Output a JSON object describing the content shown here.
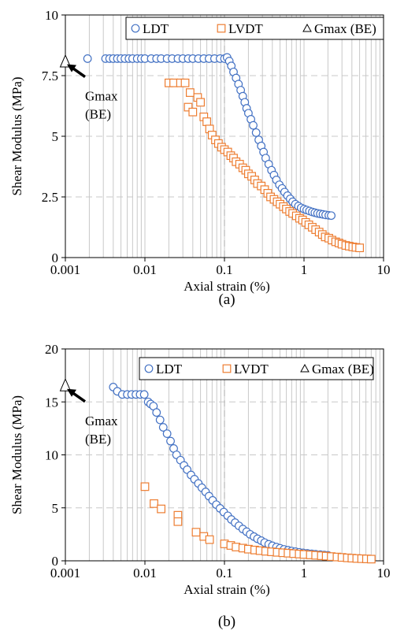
{
  "chart_data": [
    {
      "type": "scatter",
      "panel_label": "(a)",
      "xlabel": "Axial strain (%)",
      "ylabel": "Shear Modulus (MPa)",
      "x_scale": "log",
      "xlim": [
        0.001,
        10
      ],
      "ylim": [
        0,
        10
      ],
      "x_ticks": [
        0.001,
        0.01,
        0.1,
        1,
        10
      ],
      "x_tick_labels": [
        "0.001",
        "0.01",
        "0.1",
        "1",
        "10"
      ],
      "y_ticks": [
        0,
        2.5,
        5,
        7.5,
        10
      ],
      "y_tick_labels": [
        "0",
        "2.5",
        "5",
        "7.5",
        "10"
      ],
      "grid": "vertical minor log grid, dashed horizontal lines",
      "legend_placement": "top-right",
      "legend": [
        "LDT",
        "LVDT",
        "Gmax (BE)"
      ],
      "annotation": {
        "text_line1": "Gmax",
        "text_line2": "(BE)",
        "arrow_to": {
          "x": 0.001,
          "y": 8.0
        }
      },
      "dashed_reference_x": 0.1,
      "series": [
        {
          "name": "LDT",
          "marker": "circle",
          "color": "#4472C4",
          "x": [
            0.0019,
            0.0032,
            0.0036,
            0.004,
            0.0045,
            0.005,
            0.0056,
            0.0063,
            0.007,
            0.008,
            0.009,
            0.01,
            0.012,
            0.014,
            0.016,
            0.019,
            0.022,
            0.026,
            0.03,
            0.035,
            0.04,
            0.047,
            0.055,
            0.064,
            0.075,
            0.088,
            0.1,
            0.108,
            0.115,
            0.122,
            0.13,
            0.14,
            0.15,
            0.16,
            0.17,
            0.18,
            0.19,
            0.2,
            0.215,
            0.23,
            0.25,
            0.27,
            0.29,
            0.31,
            0.33,
            0.36,
            0.39,
            0.42,
            0.45,
            0.49,
            0.53,
            0.57,
            0.62,
            0.67,
            0.72,
            0.78,
            0.85,
            0.92,
            1.0,
            1.08,
            1.17,
            1.27,
            1.37,
            1.48,
            1.6,
            1.73,
            1.87,
            2.05,
            2.2
          ],
          "y": [
            8.2,
            8.2,
            8.2,
            8.2,
            8.2,
            8.2,
            8.2,
            8.2,
            8.2,
            8.2,
            8.2,
            8.2,
            8.2,
            8.2,
            8.2,
            8.2,
            8.2,
            8.2,
            8.2,
            8.2,
            8.2,
            8.2,
            8.2,
            8.2,
            8.2,
            8.2,
            8.2,
            8.25,
            8.1,
            7.9,
            7.65,
            7.4,
            7.15,
            6.9,
            6.65,
            6.4,
            6.15,
            5.95,
            5.7,
            5.45,
            5.15,
            4.85,
            4.6,
            4.35,
            4.1,
            3.85,
            3.6,
            3.4,
            3.2,
            3.0,
            2.85,
            2.7,
            2.55,
            2.42,
            2.3,
            2.2,
            2.12,
            2.05,
            2.0,
            1.96,
            1.92,
            1.88,
            1.85,
            1.82,
            1.8,
            1.78,
            1.76,
            1.74,
            1.73
          ]
        },
        {
          "name": "LVDT",
          "marker": "square",
          "color": "#ED7D31",
          "x": [
            0.02,
            0.023,
            0.028,
            0.032,
            0.035,
            0.037,
            0.04,
            0.046,
            0.05,
            0.055,
            0.06,
            0.065,
            0.07,
            0.077,
            0.084,
            0.092,
            0.1,
            0.11,
            0.12,
            0.13,
            0.14,
            0.155,
            0.17,
            0.185,
            0.2,
            0.22,
            0.24,
            0.26,
            0.29,
            0.32,
            0.35,
            0.38,
            0.42,
            0.46,
            0.5,
            0.55,
            0.6,
            0.66,
            0.72,
            0.8,
            0.88,
            0.96,
            1.05,
            1.15,
            1.27,
            1.4,
            1.55,
            1.7,
            1.85,
            2.05,
            2.25,
            2.5,
            2.75,
            3.0,
            3.35,
            3.7,
            4.1,
            4.5,
            5.0
          ],
          "y": [
            7.2,
            7.2,
            7.2,
            7.2,
            6.2,
            6.8,
            6.0,
            6.6,
            6.4,
            5.8,
            5.6,
            5.3,
            5.05,
            4.85,
            4.7,
            4.55,
            4.45,
            4.35,
            4.2,
            4.1,
            3.95,
            3.85,
            3.7,
            3.6,
            3.45,
            3.35,
            3.2,
            3.05,
            2.95,
            2.8,
            2.65,
            2.5,
            2.4,
            2.3,
            2.2,
            2.1,
            2.0,
            1.9,
            1.82,
            1.72,
            1.62,
            1.55,
            1.45,
            1.35,
            1.25,
            1.15,
            1.05,
            0.95,
            0.85,
            0.8,
            0.72,
            0.65,
            0.6,
            0.55,
            0.5,
            0.47,
            0.44,
            0.42,
            0.4
          ]
        },
        {
          "name": "Gmax (BE)",
          "marker": "triangle",
          "color": "#000000",
          "x": [
            0.001
          ],
          "y": [
            8.1
          ]
        }
      ]
    },
    {
      "type": "scatter",
      "panel_label": "(b)",
      "xlabel": "Axial strain (%)",
      "ylabel": "Shear Modulus (MPa)",
      "x_scale": "log",
      "xlim": [
        0.001,
        10
      ],
      "ylim": [
        0,
        20
      ],
      "x_ticks": [
        0.001,
        0.01,
        0.1,
        1,
        10
      ],
      "x_tick_labels": [
        "0.001",
        "0.01",
        "0.1",
        "1",
        "10"
      ],
      "y_ticks": [
        0,
        5,
        10,
        15,
        20
      ],
      "y_tick_labels": [
        "0",
        "5",
        "10",
        "15",
        "20"
      ],
      "grid": "vertical minor log grid, dashed horizontal lines",
      "legend_placement": "top-right",
      "legend": [
        "LDT",
        "LVDT",
        "Gmax (BE)"
      ],
      "annotation": {
        "text_line1": "Gmax",
        "text_line2": "(BE)",
        "arrow_to": {
          "x": 0.001,
          "y": 16.3
        }
      },
      "dashed_reference_x": 0.1,
      "series": [
        {
          "name": "LDT",
          "marker": "circle",
          "color": "#4472C4",
          "x": [
            0.004,
            0.0045,
            0.0052,
            0.006,
            0.0068,
            0.0077,
            0.0087,
            0.0098,
            0.011,
            0.0118,
            0.0128,
            0.014,
            0.0155,
            0.017,
            0.019,
            0.021,
            0.023,
            0.025,
            0.028,
            0.031,
            0.034,
            0.038,
            0.042,
            0.047,
            0.052,
            0.058,
            0.064,
            0.071,
            0.079,
            0.088,
            0.098,
            0.11,
            0.122,
            0.136,
            0.152,
            0.17,
            0.19,
            0.21,
            0.235,
            0.26,
            0.29,
            0.32,
            0.36,
            0.4,
            0.45,
            0.5,
            0.56,
            0.63,
            0.7,
            0.78,
            0.87,
            0.97,
            1.1,
            1.25,
            1.4,
            1.6,
            1.8,
            2.0
          ],
          "y": [
            16.4,
            16.0,
            15.7,
            15.7,
            15.7,
            15.7,
            15.7,
            15.7,
            15.0,
            14.8,
            14.6,
            14.0,
            13.3,
            12.6,
            12.0,
            11.3,
            10.6,
            10.0,
            9.5,
            9.0,
            8.6,
            8.1,
            7.7,
            7.3,
            6.9,
            6.5,
            6.1,
            5.7,
            5.3,
            4.95,
            4.6,
            4.25,
            3.9,
            3.6,
            3.3,
            3.0,
            2.75,
            2.5,
            2.28,
            2.08,
            1.9,
            1.72,
            1.56,
            1.42,
            1.3,
            1.18,
            1.08,
            1.0,
            0.92,
            0.86,
            0.8,
            0.75,
            0.7,
            0.66,
            0.62,
            0.58,
            0.55,
            0.52
          ]
        },
        {
          "name": "LVDT",
          "marker": "square",
          "color": "#ED7D31",
          "x": [
            0.01,
            0.013,
            0.016,
            0.026,
            0.026,
            0.044,
            0.055,
            0.065,
            0.1,
            0.12,
            0.14,
            0.17,
            0.2,
            0.24,
            0.28,
            0.33,
            0.39,
            0.46,
            0.54,
            0.63,
            0.74,
            0.87,
            1.0,
            1.2,
            1.4,
            1.65,
            1.9,
            2.2,
            2.6,
            3.0,
            3.5,
            4.0,
            4.6,
            5.3,
            6.1,
            7.0
          ],
          "y": [
            7.0,
            5.4,
            4.9,
            4.3,
            3.7,
            2.7,
            2.3,
            2.0,
            1.6,
            1.45,
            1.3,
            1.2,
            1.1,
            1.02,
            0.96,
            0.9,
            0.85,
            0.8,
            0.76,
            0.72,
            0.68,
            0.64,
            0.6,
            0.56,
            0.52,
            0.48,
            0.44,
            0.4,
            0.36,
            0.32,
            0.28,
            0.25,
            0.22,
            0.2,
            0.18,
            0.16
          ]
        },
        {
          "name": "Gmax (BE)",
          "marker": "triangle",
          "color": "#000000",
          "x": [
            0.001
          ],
          "y": [
            16.6
          ]
        }
      ]
    }
  ]
}
